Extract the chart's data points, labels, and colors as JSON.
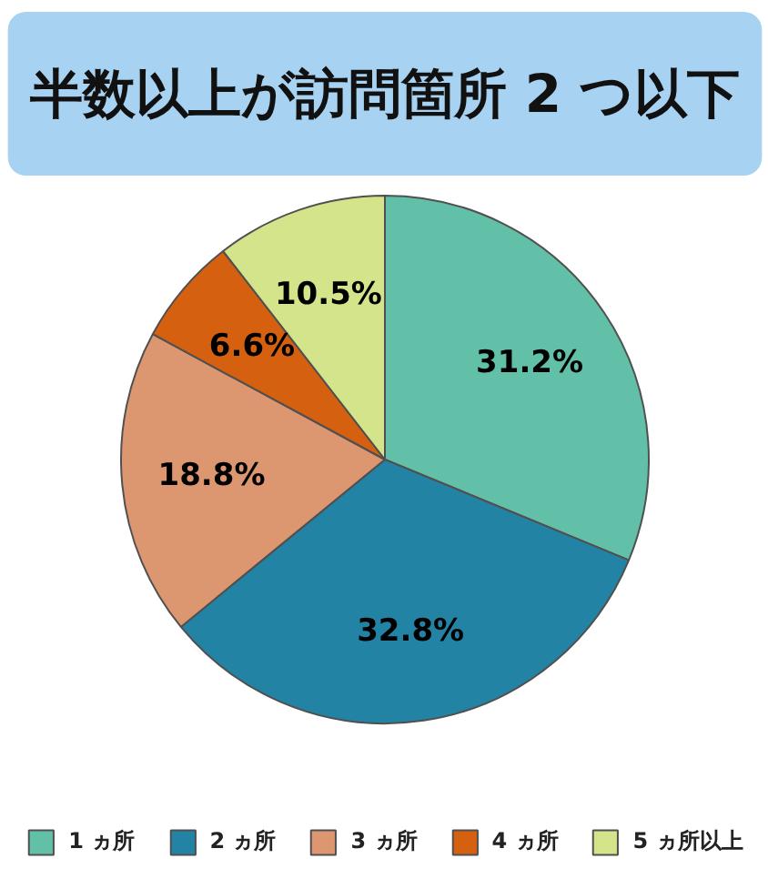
{
  "chart_data": {
    "type": "pie",
    "title": "半数以上が訪問箇所 2 つ以下",
    "categories": [
      "1 ヵ所",
      "2 ヵ所",
      "3 ヵ所",
      "4 ヵ所",
      "5 ヵ所以上"
    ],
    "values": [
      31.2,
      32.8,
      18.8,
      6.6,
      10.5
    ],
    "colors": [
      "#62c0a9",
      "#2283a5",
      "#dd9770",
      "#d5600f",
      "#d4e48a"
    ],
    "value_labels": [
      "31.2%",
      "32.8%",
      "18.8%",
      "6.6%",
      "10.5%"
    ],
    "legend": "bottom"
  }
}
